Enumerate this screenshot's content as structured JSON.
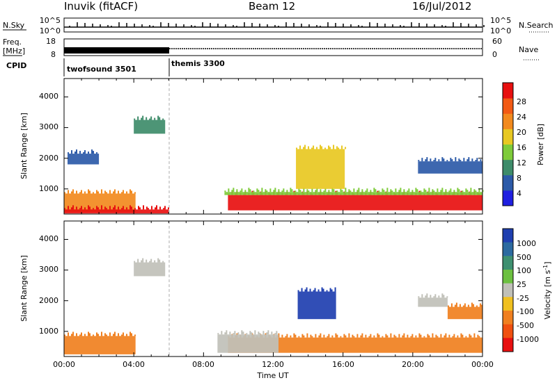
{
  "header": {
    "station": "Inuvik (fitACF)",
    "beam": "Beam 12",
    "date": "16/Jul/2012"
  },
  "top_panels": {
    "noise": {
      "left_label": "N.Sky",
      "right_label": "N.Search",
      "left_ticks": [
        "10^5",
        "10^0"
      ],
      "right_ticks": [
        "10^5",
        "10^0"
      ]
    },
    "freq": {
      "left_label_line1": "Freq.",
      "left_label_line2": "[MHz]",
      "right_label": "Nave",
      "left_ticks": [
        "18",
        "8"
      ],
      "right_ticks": [
        "60",
        "0"
      ]
    },
    "cpid": {
      "label": "CPID",
      "programs": [
        {
          "name": "twofsound 3501",
          "start_hour": 0,
          "end_hour": 6
        },
        {
          "name": "themis 3300",
          "start_hour": 6,
          "end_hour": 24
        }
      ]
    }
  },
  "x_axis": {
    "label": "Time UT",
    "ticks": [
      "00:00",
      "04:00",
      "08:00",
      "12:00",
      "16:00",
      "20:00",
      "00:00"
    ],
    "range_hours": [
      0,
      24
    ]
  },
  "power_panel": {
    "ylabel": "Slant Range [km]",
    "yticks": [
      "1000",
      "2000",
      "3000",
      "4000"
    ],
    "colorbar": {
      "label": "Power [dB]",
      "ticks": [
        "4",
        "8",
        "12",
        "16",
        "20",
        "24",
        "28"
      ],
      "colors": [
        "#1f1fe0",
        "#2c5aa8",
        "#3e8c6a",
        "#7ecb3a",
        "#e8c822",
        "#f28a1e",
        "#f25a14",
        "#e81010"
      ]
    }
  },
  "velocity_panel": {
    "ylabel": "Slant Range [km]",
    "yticks": [
      "1000",
      "2000",
      "3000",
      "4000"
    ],
    "colorbar": {
      "label": "Velocity [m s",
      "label_sup": "-1",
      "label_end": "]",
      "ticks": [
        "1000",
        "500",
        "100",
        "25",
        "-25",
        "-100",
        "-500",
        "-1000"
      ],
      "colors": [
        "#1f3fb0",
        "#2c6aa0",
        "#3e9070",
        "#6cc040",
        "#c0c0b8",
        "#f0c020",
        "#f08020",
        "#f05010",
        "#e81010"
      ]
    }
  },
  "chart_data": [
    {
      "type": "heatmap",
      "title": "Inuvik (fitACF)",
      "subtitle": "Beam 12",
      "xlabel": "Time UT",
      "ylabel": "Slant Range [km]",
      "xlim_hours": [
        0,
        24
      ],
      "ylim_km": [
        180,
        4600
      ],
      "zlabel": "Power [dB]",
      "zlim": [
        0,
        30
      ],
      "regions": [
        {
          "t": [
            0,
            4.1
          ],
          "r": [
            250,
            850
          ],
          "value": 22
        },
        {
          "t": [
            0,
            6
          ],
          "r": [
            200,
            330
          ],
          "value": 28
        },
        {
          "t": [
            9.4,
            24
          ],
          "r": [
            300,
            800
          ],
          "value": 28
        },
        {
          "t": [
            9.2,
            24
          ],
          "r": [
            800,
            900
          ],
          "value": 12
        },
        {
          "t": [
            13.3,
            16.1
          ],
          "r": [
            1000,
            2300
          ],
          "value": 16
        },
        {
          "t": [
            4.0,
            5.8
          ],
          "r": [
            2800,
            3250
          ],
          "value": 8
        },
        {
          "t": [
            20.3,
            24
          ],
          "r": [
            1500,
            1900
          ],
          "value": 6
        },
        {
          "t": [
            0.2,
            2.0
          ],
          "r": [
            1800,
            2150
          ],
          "value": 6
        }
      ]
    },
    {
      "type": "heatmap",
      "title": "Inuvik (fitACF)",
      "subtitle": "Beam 12",
      "xlabel": "Time UT",
      "ylabel": "Slant Range [km]",
      "xlim_hours": [
        0,
        24
      ],
      "ylim_km": [
        180,
        4600
      ],
      "zlabel": "Velocity [m s-1]",
      "zlim": [
        -1000,
        1000
      ],
      "regions": [
        {
          "t": [
            0,
            4.1
          ],
          "r": [
            250,
            850
          ],
          "value": -300
        },
        {
          "t": [
            9.4,
            24
          ],
          "r": [
            300,
            800
          ],
          "value": -400
        },
        {
          "t": [
            8.8,
            12.3
          ],
          "r": [
            300,
            900
          ],
          "value": 0
        },
        {
          "t": [
            13.4,
            15.6
          ],
          "r": [
            1400,
            2300
          ],
          "value": 700
        },
        {
          "t": [
            4.0,
            5.8
          ],
          "r": [
            2800,
            3250
          ],
          "value": 0
        },
        {
          "t": [
            22.0,
            24
          ],
          "r": [
            1400,
            1800
          ],
          "value": -400
        },
        {
          "t": [
            20.3,
            22.0
          ],
          "r": [
            1800,
            2100
          ],
          "value": 0
        }
      ]
    }
  ]
}
